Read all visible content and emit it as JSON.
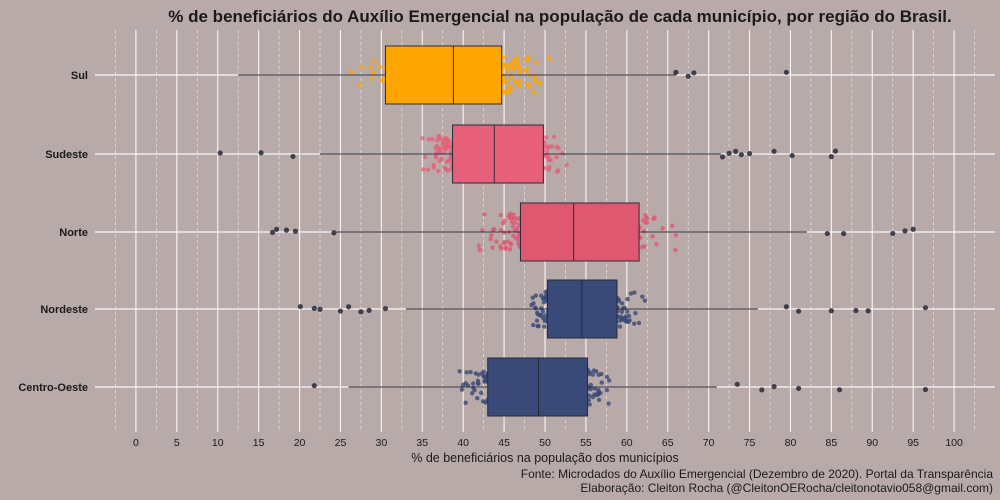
{
  "chart_data": {
    "type": "boxplot",
    "title": "% de beneficiários do Auxílio Emergencial na população de cada município, por região do Brasil.",
    "xlabel": "% de beneficiários na população dos municípios",
    "ylabel": "",
    "xlim": [
      -5,
      105
    ],
    "x_ticks": [
      0,
      5,
      10,
      15,
      20,
      25,
      30,
      35,
      40,
      45,
      50,
      55,
      60,
      65,
      70,
      75,
      80,
      85,
      90,
      95,
      100
    ],
    "grid": true,
    "categories": [
      "Sul",
      "Sudeste",
      "Norte",
      "Nordeste",
      "Centro-Oeste"
    ],
    "series": [
      {
        "name": "Sul",
        "color": "#ffa500",
        "q1": 30.5,
        "median": 38.8,
        "q3": 44.7,
        "whisker_low": 12.5,
        "whisker_high": 66.0,
        "outliers": [
          66.0,
          67.5,
          68.2,
          79.5
        ],
        "spread": [
          12.5,
          66.0
        ]
      },
      {
        "name": "Sudeste",
        "color": "#e6607a",
        "q1": 38.7,
        "median": 43.8,
        "q3": 49.8,
        "whisker_low": 22.5,
        "whisker_high": 71.5,
        "outliers": [
          10.3,
          15.3,
          19.2,
          71.7,
          72.5,
          73.3,
          74.0,
          75.0,
          78.0,
          80.2,
          85.0,
          85.5
        ],
        "spread": [
          22.5,
          71.5
        ]
      },
      {
        "name": "Norte",
        "color": "#e05870",
        "q1": 47.0,
        "median": 53.5,
        "q3": 61.5,
        "whisker_low": 24.5,
        "whisker_high": 82.0,
        "outliers": [
          16.7,
          17.2,
          18.4,
          19.5,
          24.2,
          84.5,
          86.5,
          92.5,
          94.0,
          95.0
        ],
        "spread": [
          24.5,
          82.0
        ]
      },
      {
        "name": "Nordeste",
        "color": "#3a4a78",
        "q1": 50.3,
        "median": 54.5,
        "q3": 58.8,
        "whisker_low": 33.0,
        "whisker_high": 76.0,
        "outliers": [
          20.1,
          21.8,
          22.5,
          25.0,
          26.0,
          27.5,
          28.5,
          30.5,
          79.5,
          81.0,
          85.0,
          88.0,
          89.5,
          96.5
        ],
        "spread": [
          33.0,
          76.0
        ]
      },
      {
        "name": "Centro-Oeste",
        "color": "#3a4a78",
        "q1": 43.0,
        "median": 49.2,
        "q3": 55.2,
        "whisker_low": 26.0,
        "whisker_high": 71.0,
        "outliers": [
          21.8,
          73.5,
          76.5,
          78.0,
          81.0,
          86.0,
          96.5
        ],
        "spread": [
          26.0,
          71.0
        ]
      }
    ]
  },
  "caption": {
    "source": "Fonte: Microdados do Auxílio Emergencial (Dezembro de 2020). Portal da Transparência",
    "author": "Elaboração: Cleiton Rocha (@CleitonOERocha/cleitonotavio058@gmail.com)"
  },
  "colors": {
    "background": "#b8aaa8",
    "grid": "#ffffff",
    "box_stroke": "#2a2a3a"
  }
}
